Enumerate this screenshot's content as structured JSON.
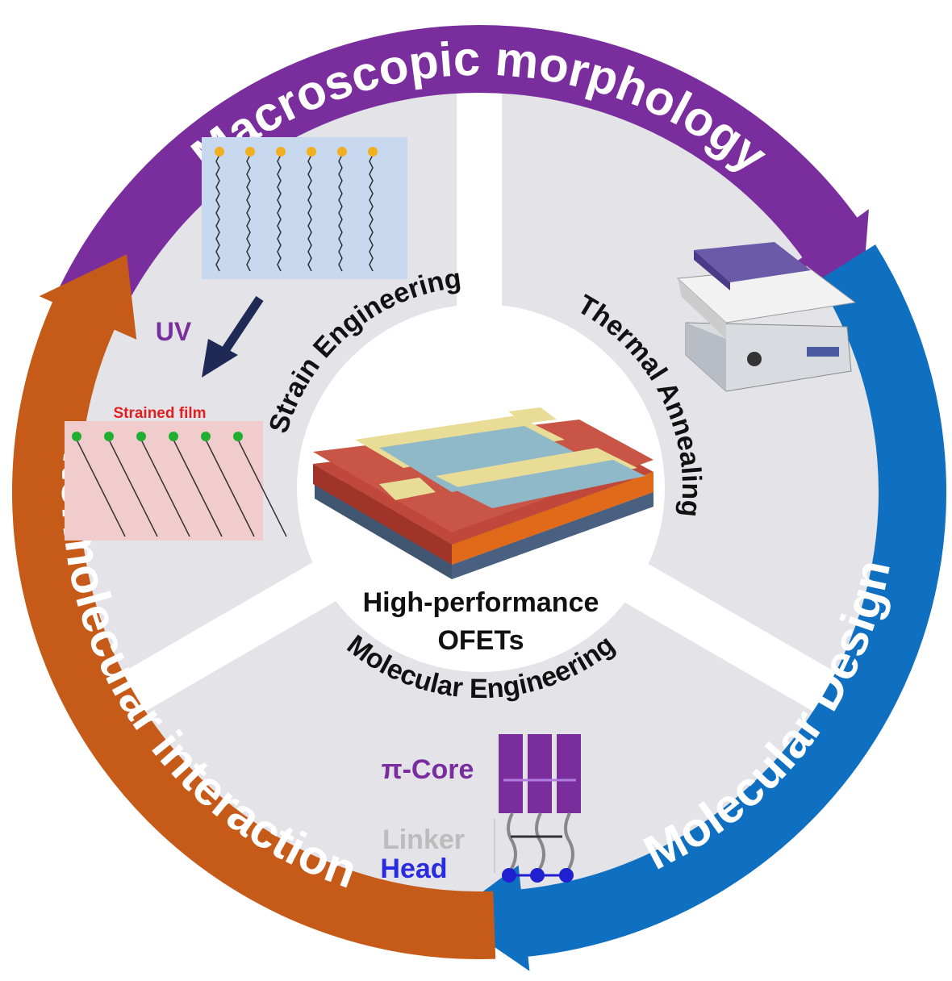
{
  "ring": {
    "top_label": "Macroscopic morphology",
    "right_label": "Molecular Design",
    "left_label": "Intermolecular interaction"
  },
  "sectors": {
    "strain": "Strain Engineering",
    "thermal": "Thermal Annealing",
    "molecular": "Molecular Engineering"
  },
  "center": {
    "line1": "High-performance",
    "line2": "OFETs"
  },
  "strain_panel": {
    "uv_label": "UV",
    "strained_label": "Strained film"
  },
  "molecule_panel": {
    "core_label": "π-Core",
    "linker_label": "Linker",
    "head_label": "Head"
  },
  "colors": {
    "purple": "#7a2e9e",
    "blue": "#0f6fc0",
    "orange": "#c65a18",
    "sector_gray": "#e3e3e8"
  }
}
